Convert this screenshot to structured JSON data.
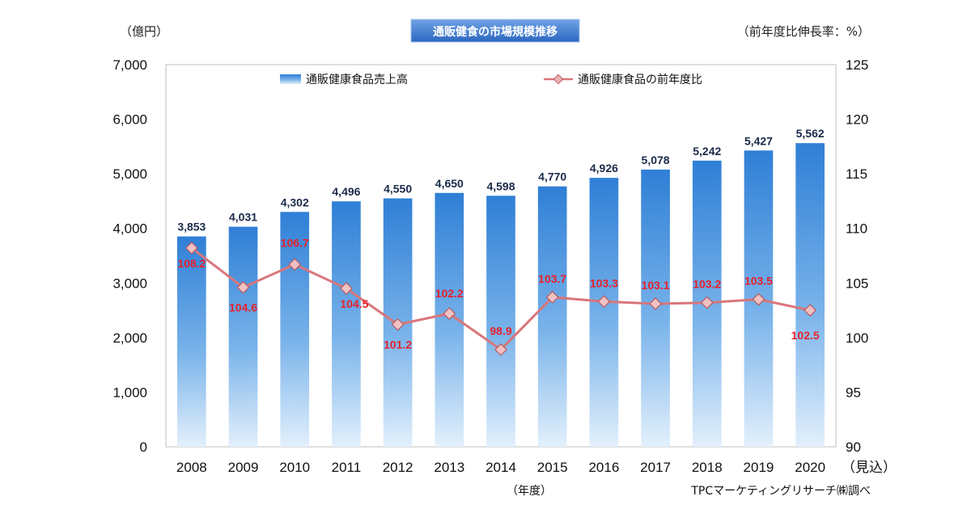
{
  "chart_data": {
    "type": "bar",
    "title": "通販健食の市場規模推移",
    "left_unit": "（億円）",
    "right_unit": "（前年度比伸長率：%）",
    "categories": [
      "2008",
      "2009",
      "2010",
      "2011",
      "2012",
      "2013",
      "2014",
      "2015",
      "2016",
      "2017",
      "2018",
      "2019",
      "2020"
    ],
    "last_category_suffix": "（見込）",
    "xlabel": "（年度）",
    "source": "TPCマーケティングリサーチ㈱調べ",
    "ylim": [
      0,
      7000
    ],
    "y_ticks": [
      "0",
      "1,000",
      "2,000",
      "3,000",
      "4,000",
      "5,000",
      "6,000",
      "7,000"
    ],
    "y2lim": [
      90,
      125
    ],
    "y2_ticks": [
      "90",
      "95",
      "100",
      "105",
      "110",
      "115",
      "120",
      "125"
    ],
    "series": [
      {
        "name": "通販健康食品売上高",
        "kind": "bar",
        "color": "#3f8fdb",
        "values": [
          3853,
          4031,
          4302,
          4496,
          4550,
          4650,
          4598,
          4770,
          4926,
          5078,
          5242,
          5427,
          5562
        ],
        "labels": [
          "3,853",
          "4,031",
          "4,302",
          "4,496",
          "4,550",
          "4,650",
          "4,598",
          "4,770",
          "4,926",
          "5,078",
          "5,242",
          "5,427",
          "5,562"
        ]
      },
      {
        "name": "通販健康食品の前年度比",
        "kind": "line",
        "axis": "right",
        "color": "#d9767a",
        "label_color": "#e8202a",
        "values": [
          108.2,
          104.6,
          106.7,
          104.5,
          101.2,
          102.2,
          98.9,
          103.7,
          103.3,
          103.1,
          103.2,
          103.5,
          102.5
        ],
        "labels": [
          "108.2",
          "104.6",
          "106.7",
          "104.5",
          "101.2",
          "102.2",
          "98.9",
          "103.7",
          "103.3",
          "103.1",
          "103.2",
          "103.5",
          "102.5"
        ]
      }
    ],
    "grid": false,
    "legend": "top-inside"
  }
}
